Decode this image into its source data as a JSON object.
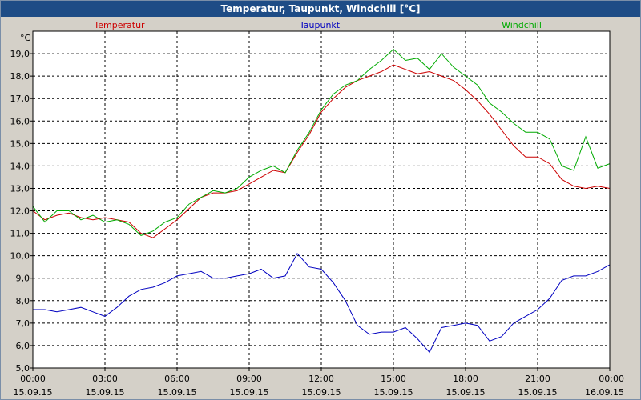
{
  "window": {
    "title": "Temperatur, Taupunkt, Windchill [°C]"
  },
  "chart_data": {
    "type": "line",
    "title": "Temperatur, Taupunkt, Windchill [°C]",
    "ylabel": "°C",
    "ylim": [
      5.0,
      20.0
    ],
    "yticks": [
      "5,0",
      "6,0",
      "7,0",
      "8,0",
      "9,0",
      "10,0",
      "11,0",
      "12,0",
      "13,0",
      "14,0",
      "15,0",
      "16,0",
      "17,0",
      "18,0",
      "19,0"
    ],
    "xlim": [
      0,
      24
    ],
    "xticks": [
      {
        "time": "00:00",
        "date": "15.09.15"
      },
      {
        "time": "03:00",
        "date": "15.09.15"
      },
      {
        "time": "06:00",
        "date": "15.09.15"
      },
      {
        "time": "09:00",
        "date": "15.09.15"
      },
      {
        "time": "12:00",
        "date": "15.09.15"
      },
      {
        "time": "15:00",
        "date": "15.09.15"
      },
      {
        "time": "18:00",
        "date": "15.09.15"
      },
      {
        "time": "21:00",
        "date": "15.09.15"
      },
      {
        "time": "00:00",
        "date": "16.09.15"
      }
    ],
    "grid": true,
    "legend_placement": "top",
    "series": [
      {
        "name": "Temperatur",
        "color": "#cc0000",
        "x": [
          0,
          0.5,
          1,
          1.5,
          2,
          2.5,
          3,
          3.5,
          4,
          4.5,
          5,
          5.5,
          6,
          6.5,
          7,
          7.5,
          8,
          8.5,
          9,
          9.5,
          10,
          10.5,
          11,
          11.5,
          12,
          12.5,
          13,
          13.5,
          14,
          14.5,
          15,
          15.5,
          16,
          16.5,
          17,
          17.5,
          18,
          18.5,
          19,
          19.5,
          20,
          20.5,
          21,
          21.5,
          22,
          22.5,
          23,
          23.5,
          24
        ],
        "values": [
          12.0,
          11.6,
          11.8,
          11.9,
          11.7,
          11.6,
          11.7,
          11.6,
          11.5,
          11.0,
          10.8,
          11.2,
          11.6,
          12.1,
          12.6,
          12.8,
          12.8,
          12.9,
          13.2,
          13.5,
          13.8,
          13.7,
          14.6,
          15.4,
          16.4,
          17.0,
          17.5,
          17.8,
          18.0,
          18.2,
          18.5,
          18.3,
          18.1,
          18.2,
          18.0,
          17.8,
          17.4,
          16.9,
          16.3,
          15.6,
          14.9,
          14.4,
          14.4,
          14.1,
          13.4,
          13.1,
          13.0,
          13.1,
          13.0
        ]
      },
      {
        "name": "Taupunkt",
        "color": "#0000c0",
        "x": [
          0,
          0.5,
          1,
          1.5,
          2,
          2.5,
          3,
          3.5,
          4,
          4.5,
          5,
          5.5,
          6,
          6.5,
          7,
          7.5,
          8,
          8.5,
          9,
          9.5,
          10,
          10.5,
          11,
          11.5,
          12,
          12.5,
          13,
          13.5,
          14,
          14.5,
          15,
          15.5,
          16,
          16.5,
          17,
          17.5,
          18,
          18.5,
          19,
          19.5,
          20,
          20.5,
          21,
          21.5,
          22,
          22.5,
          23,
          23.5,
          24
        ],
        "values": [
          7.6,
          7.6,
          7.5,
          7.6,
          7.7,
          7.5,
          7.3,
          7.7,
          8.2,
          8.5,
          8.6,
          8.8,
          9.1,
          9.2,
          9.3,
          9.0,
          9.0,
          9.1,
          9.2,
          9.4,
          9.0,
          9.1,
          10.1,
          9.5,
          9.4,
          8.8,
          8.0,
          6.9,
          6.5,
          6.6,
          6.6,
          6.8,
          6.3,
          5.7,
          6.8,
          6.9,
          7.0,
          6.9,
          6.2,
          6.4,
          7.0,
          7.3,
          7.6,
          8.1,
          8.9,
          9.1,
          9.1,
          9.3,
          9.6
        ]
      },
      {
        "name": "Windchill",
        "color": "#00aa00",
        "x": [
          0,
          0.5,
          1,
          1.5,
          2,
          2.5,
          3,
          3.5,
          4,
          4.5,
          5,
          5.5,
          6,
          6.5,
          7,
          7.5,
          8,
          8.5,
          9,
          9.5,
          10,
          10.5,
          11,
          11.5,
          12,
          12.5,
          13,
          13.5,
          14,
          14.5,
          15,
          15.5,
          16,
          16.5,
          17,
          17.5,
          18,
          18.5,
          19,
          19.5,
          20,
          20.5,
          21,
          21.5,
          22,
          22.5,
          23,
          23.5,
          24
        ],
        "values": [
          12.2,
          11.5,
          12.0,
          12.0,
          11.6,
          11.8,
          11.5,
          11.6,
          11.4,
          10.9,
          11.1,
          11.5,
          11.7,
          12.3,
          12.6,
          12.9,
          12.8,
          13.0,
          13.5,
          13.8,
          14.0,
          13.7,
          14.7,
          15.5,
          16.5,
          17.2,
          17.6,
          17.8,
          18.3,
          18.7,
          19.2,
          18.7,
          18.8,
          18.3,
          19.0,
          18.4,
          18.0,
          17.6,
          16.8,
          16.4,
          15.9,
          15.5,
          15.5,
          15.2,
          14.0,
          13.8,
          15.3,
          13.9,
          14.1
        ]
      }
    ]
  }
}
